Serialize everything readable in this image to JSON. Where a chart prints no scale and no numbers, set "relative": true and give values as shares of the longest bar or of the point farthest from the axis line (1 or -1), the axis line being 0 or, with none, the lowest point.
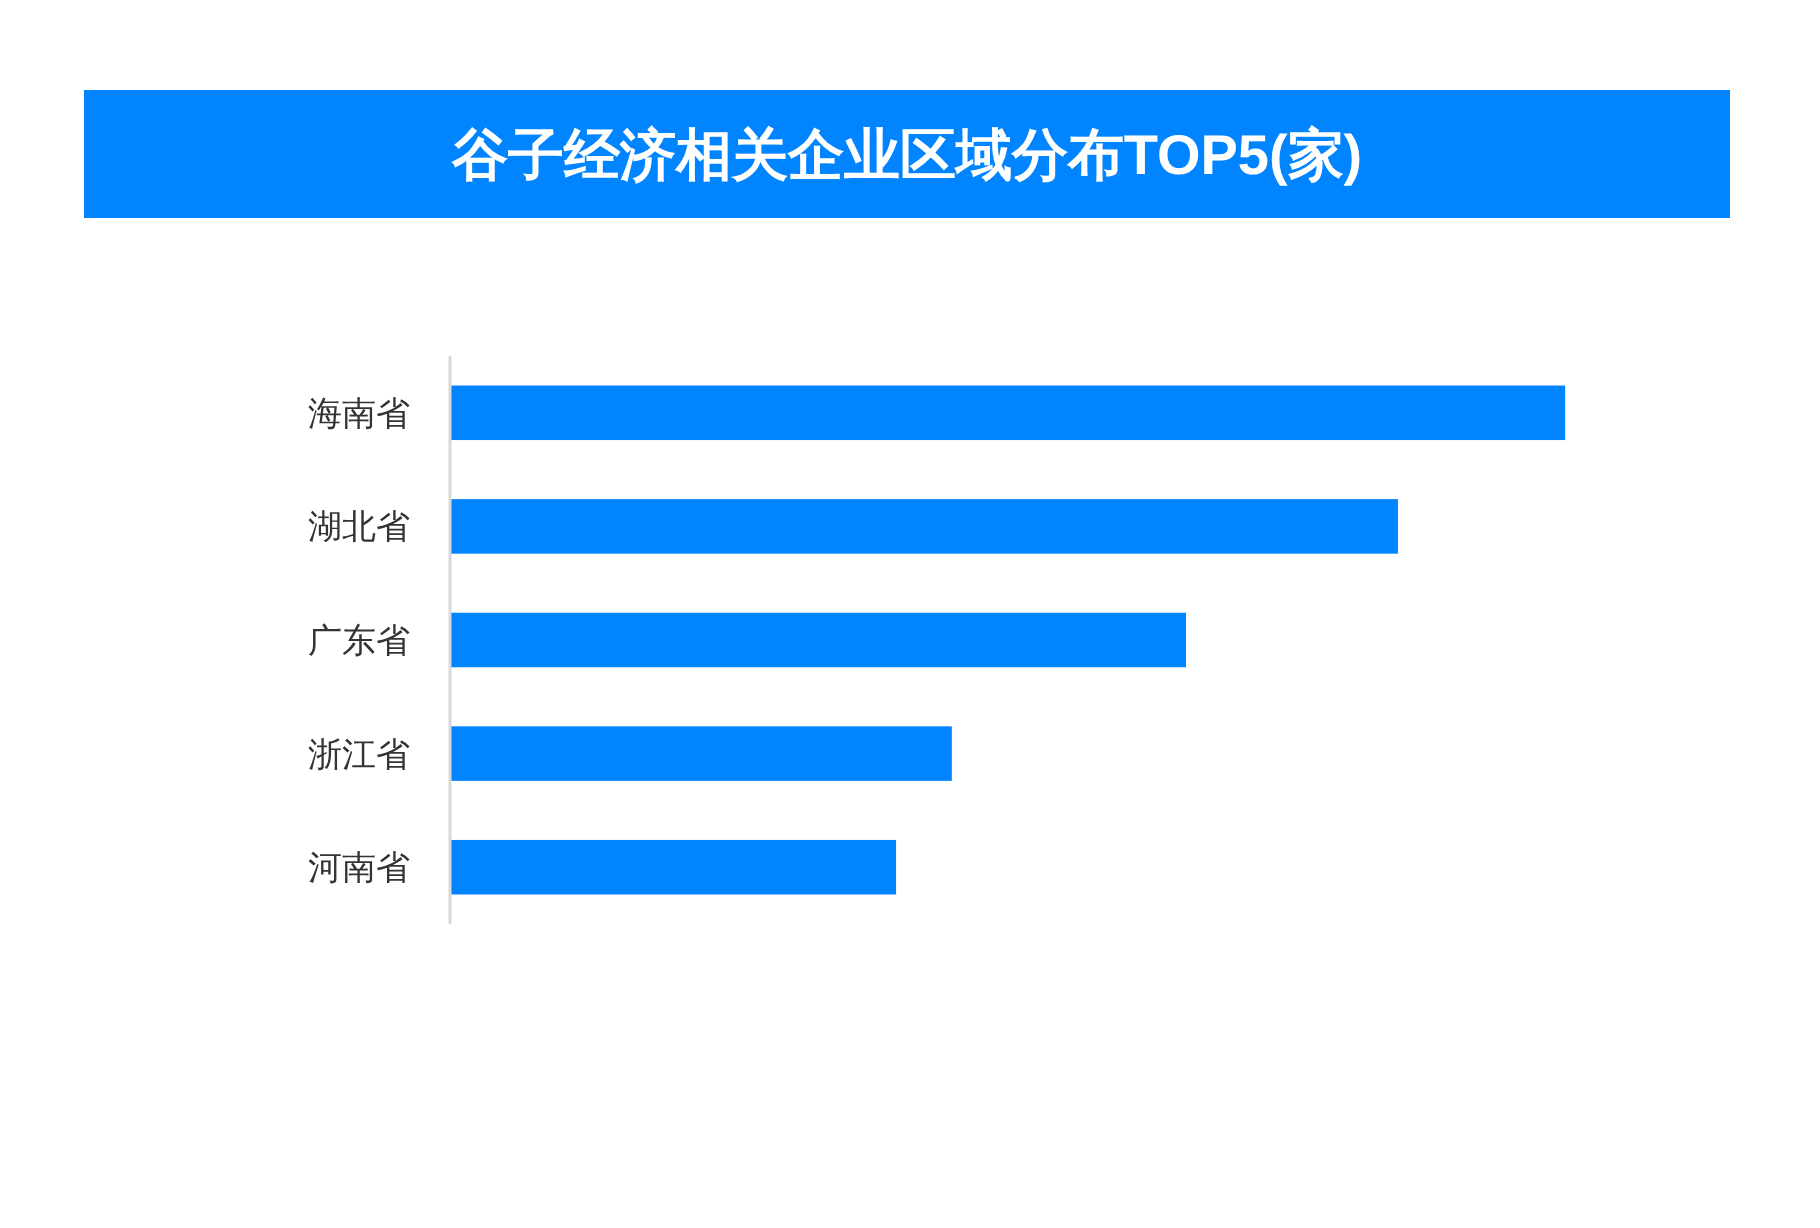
{
  "chart_data": {
    "type": "bar",
    "orientation": "horizontal",
    "relative": true,
    "title": "谷子经济相关企业区域分布TOP5(家)",
    "categories": [
      "海南省",
      "湖北省",
      "广东省",
      "浙江省",
      "河南省"
    ],
    "values": [
      1,
      0.85,
      0.66,
      0.45,
      0.4
    ],
    "color": "#0084ff"
  }
}
